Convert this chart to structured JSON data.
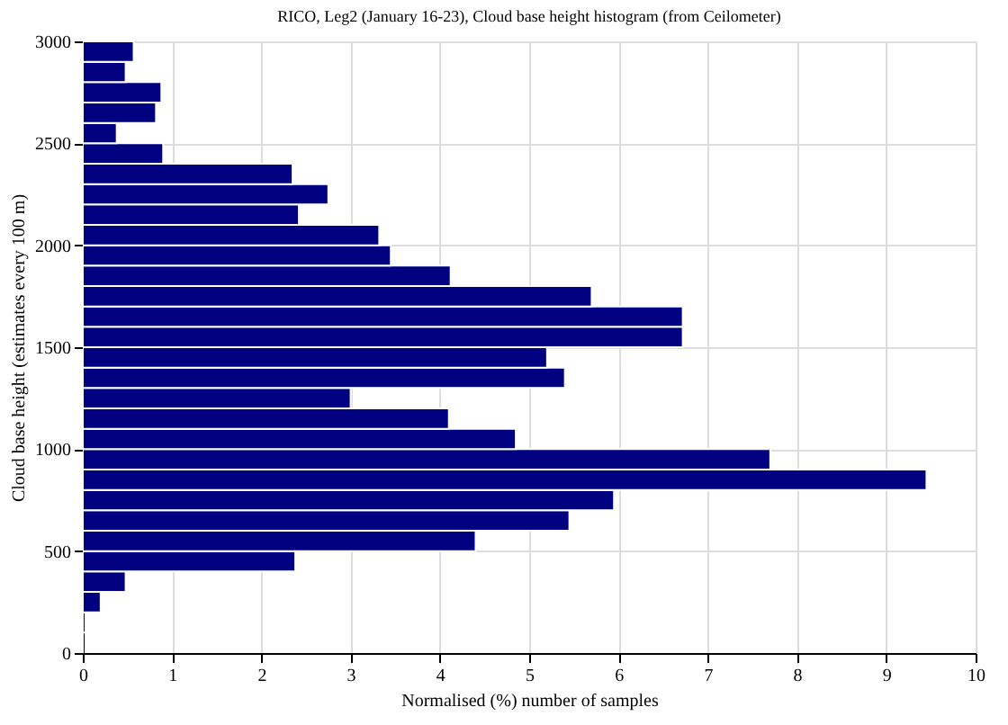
{
  "chart_data": {
    "type": "histogram",
    "orientation": "horizontal",
    "title": "RICO, Leg2 (January 16-23), Cloud base height histogram (from Ceilometer)",
    "xlabel": "Normalised (%) number of samples",
    "ylabel": "Cloud base height (estimates every 100 m)",
    "bins": [
      0,
      100,
      200,
      300,
      400,
      500,
      600,
      700,
      800,
      900,
      1000,
      1100,
      1200,
      1300,
      1400,
      1500,
      1600,
      1700,
      1800,
      1900,
      2000,
      2100,
      2200,
      2300,
      2400,
      2500,
      2600,
      2700,
      2800,
      2900,
      3000
    ],
    "values": [
      0,
      0.03,
      0.2,
      0.48,
      2.38,
      4.4,
      5.45,
      5.95,
      9.45,
      7.7,
      4.85,
      4.1,
      3.0,
      5.4,
      5.2,
      6.72,
      6.72,
      5.7,
      4.12,
      3.45,
      3.32,
      2.42,
      2.75,
      2.35,
      0.9,
      0.38,
      0.82,
      0.88,
      0.48,
      0.57
    ],
    "color": "#000080",
    "xlim": [
      0,
      10
    ],
    "xticks": [
      0,
      1,
      2,
      3,
      4,
      5,
      6,
      7,
      8,
      9,
      10
    ],
    "ylim": [
      0,
      3000
    ],
    "yticks": [
      0,
      500,
      1000,
      1500,
      2000,
      2500,
      3000
    ],
    "grid": true
  }
}
